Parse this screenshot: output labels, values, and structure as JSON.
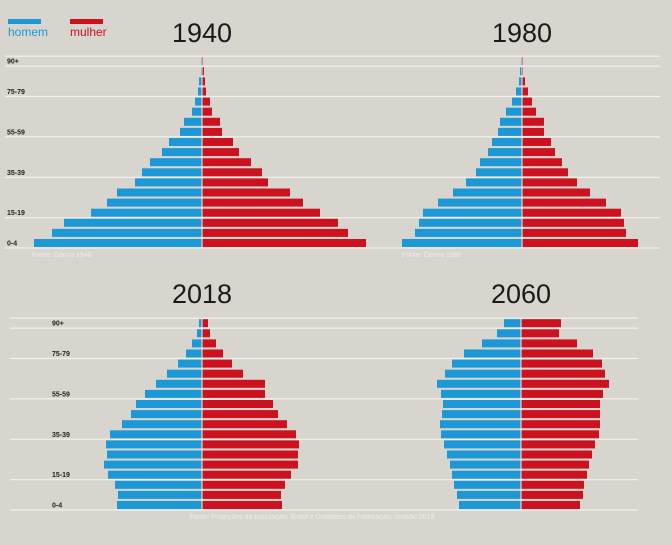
{
  "legend": {
    "male_label": "homem",
    "female_label": "mulher"
  },
  "colors": {
    "male": "#1d98d6",
    "female": "#cc111f",
    "background": "#d8d5cf",
    "grid": "#f2f0ec"
  },
  "chart_data": [
    {
      "type": "bar",
      "orientation": "population-pyramid",
      "title": "1940",
      "source": "Fonte: Censo 1940",
      "categories": [
        "0-4",
        "5-9",
        "10-14",
        "15-19",
        "20-24",
        "25-29",
        "30-34",
        "35-39",
        "40-44",
        "45-49",
        "50-54",
        "55-59",
        "60-64",
        "65-69",
        "70-74",
        "75-79",
        "80-84",
        "85-89",
        "90+"
      ],
      "tick_labels": [
        "90+",
        "75-79",
        "55-59",
        "35-39",
        "15-19",
        "0-4"
      ],
      "series": [
        {
          "name": "homem",
          "values": [
            168,
            150,
            138,
            111,
            95,
            85,
            67,
            60,
            52,
            40,
            33,
            22,
            18,
            10,
            7,
            4,
            3,
            1,
            1
          ]
        },
        {
          "name": "mulher",
          "values": [
            164,
            146,
            136,
            118,
            101,
            88,
            66,
            60,
            49,
            37,
            31,
            20,
            18,
            10,
            8,
            4,
            3,
            2,
            1
          ]
        }
      ]
    },
    {
      "type": "bar",
      "orientation": "population-pyramid",
      "title": "1980",
      "source": "Fonte: Censo 1980",
      "categories": [
        "0-4",
        "5-9",
        "10-14",
        "15-19",
        "20-24",
        "25-29",
        "30-34",
        "35-39",
        "40-44",
        "45-49",
        "50-54",
        "55-59",
        "60-64",
        "65-69",
        "70-74",
        "75-79",
        "80-84",
        "85-89",
        "90+"
      ],
      "tick_labels": [],
      "series": [
        {
          "name": "homem",
          "values": [
            120,
            107,
            103,
            99,
            84,
            69,
            56,
            46,
            42,
            34,
            30,
            24,
            22,
            16,
            10,
            6,
            3,
            2,
            1
          ]
        },
        {
          "name": "mulher",
          "values": [
            116,
            104,
            102,
            99,
            84,
            68,
            55,
            46,
            40,
            33,
            29,
            22,
            22,
            14,
            10,
            6,
            3,
            1,
            1
          ]
        }
      ]
    },
    {
      "type": "bar",
      "orientation": "population-pyramid",
      "title": "2018",
      "source": "Fonte: Projeções da população: Brasil e Unidades da Federação: revisão 2018",
      "categories": [
        "0-4",
        "5-9",
        "10-14",
        "15-19",
        "20-24",
        "25-29",
        "30-34",
        "35-39",
        "40-44",
        "45-49",
        "50-54",
        "55-59",
        "60-64",
        "65-69",
        "70-74",
        "75-79",
        "80-84",
        "85-89",
        "90+"
      ],
      "tick_labels": [
        "90+",
        "75-79",
        "55-59",
        "35-39",
        "15-19",
        "0-4"
      ],
      "series": [
        {
          "name": "homem",
          "values": [
            85,
            84,
            87,
            94,
            98,
            95,
            96,
            92,
            80,
            71,
            66,
            57,
            46,
            35,
            24,
            16,
            10,
            5,
            3
          ]
        },
        {
          "name": "mulher",
          "values": [
            80,
            79,
            83,
            89,
            96,
            96,
            97,
            94,
            85,
            76,
            71,
            63,
            63,
            41,
            30,
            21,
            14,
            8,
            6
          ]
        }
      ]
    },
    {
      "type": "bar",
      "orientation": "population-pyramid",
      "title": "2060",
      "categories": [
        "0-4",
        "5-9",
        "10-14",
        "15-19",
        "20-24",
        "25-29",
        "30-34",
        "35-39",
        "40-44",
        "45-49",
        "50-54",
        "55-59",
        "60-64",
        "65-69",
        "70-74",
        "75-79",
        "80-84",
        "85-89",
        "90+"
      ],
      "tick_labels": [],
      "series": [
        {
          "name": "homem",
          "values": [
            62,
            64,
            67,
            69,
            71,
            74,
            77,
            80,
            81,
            79,
            78,
            80,
            84,
            76,
            69,
            57,
            39,
            24,
            17
          ]
        },
        {
          "name": "mulher",
          "values": [
            59,
            62,
            63,
            66,
            68,
            71,
            74,
            78,
            79,
            79,
            79,
            82,
            88,
            84,
            81,
            72,
            56,
            38,
            40
          ]
        }
      ]
    }
  ]
}
